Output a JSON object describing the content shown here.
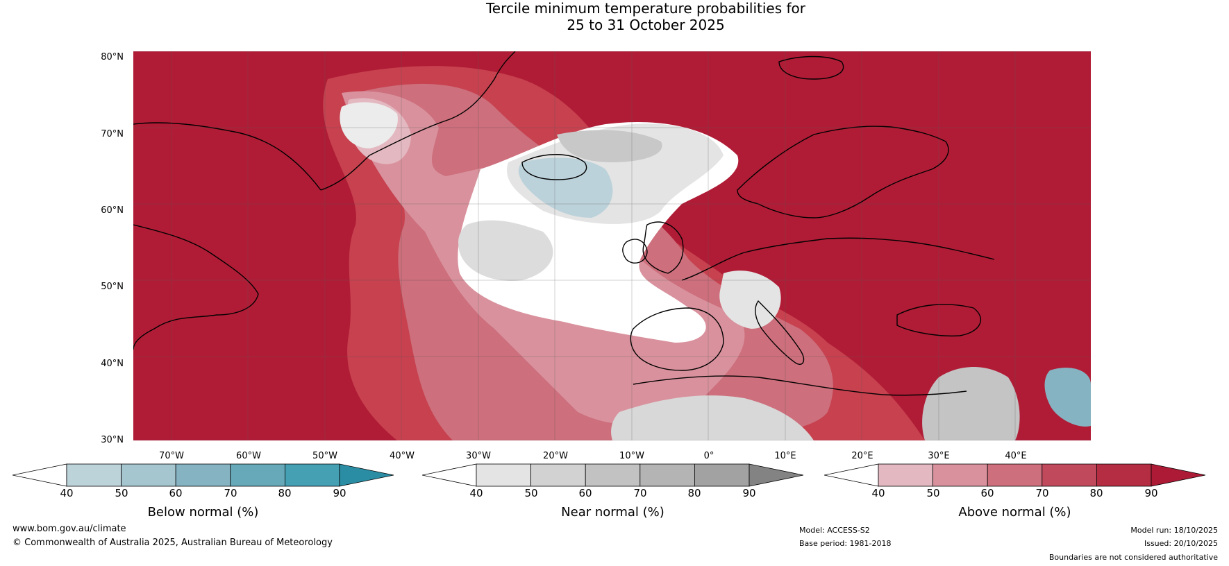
{
  "title": {
    "line1": "Tercile minimum temperature probabilities for",
    "line2": "25 to 31 October 2025"
  },
  "map": {
    "latitude_labels": [
      "80°N",
      "70°N",
      "60°N",
      "50°N",
      "40°N",
      "30°N"
    ],
    "longitude_labels": [
      "70°W",
      "60°W",
      "50°W",
      "40°W",
      "30°W",
      "20°W",
      "10°W",
      "0°",
      "10°E",
      "20°E",
      "30°E",
      "40°E"
    ]
  },
  "legends": [
    {
      "title": "Below normal (%)",
      "ticks": [
        "40",
        "50",
        "60",
        "70",
        "80",
        "90"
      ],
      "colors": [
        "#ffffff",
        "#bdd3da",
        "#a5c5cf",
        "#86b3c2",
        "#68a9b9",
        "#45a0b3",
        "#2b8da4"
      ]
    },
    {
      "title": "Near normal (%)",
      "ticks": [
        "40",
        "50",
        "60",
        "70",
        "80",
        "90"
      ],
      "colors": [
        "#ffffff",
        "#e4e4e4",
        "#d2d2d2",
        "#c2c2c2",
        "#b4b4b4",
        "#a2a2a2",
        "#838383"
      ]
    },
    {
      "title": "Above normal (%)",
      "ticks": [
        "40",
        "50",
        "60",
        "70",
        "80",
        "90"
      ],
      "colors": [
        "#ffffff",
        "#e3b8c0",
        "#d9929d",
        "#cd6f7c",
        "#c04a5c",
        "#b42d42",
        "#ad1a36"
      ]
    }
  ],
  "footer": {
    "website": "www.bom.gov.au/climate",
    "copyright": "© Commonwealth of Australia 2025, Australian Bureau of Meteorology",
    "model": "Model: ACCESS-S2",
    "base_period": "Base period: 1981-2018",
    "model_run": "Model run: 18/10/2025",
    "issued": "Issued: 20/10/2025",
    "disclaimer": "Boundaries are not considered authoritative"
  }
}
